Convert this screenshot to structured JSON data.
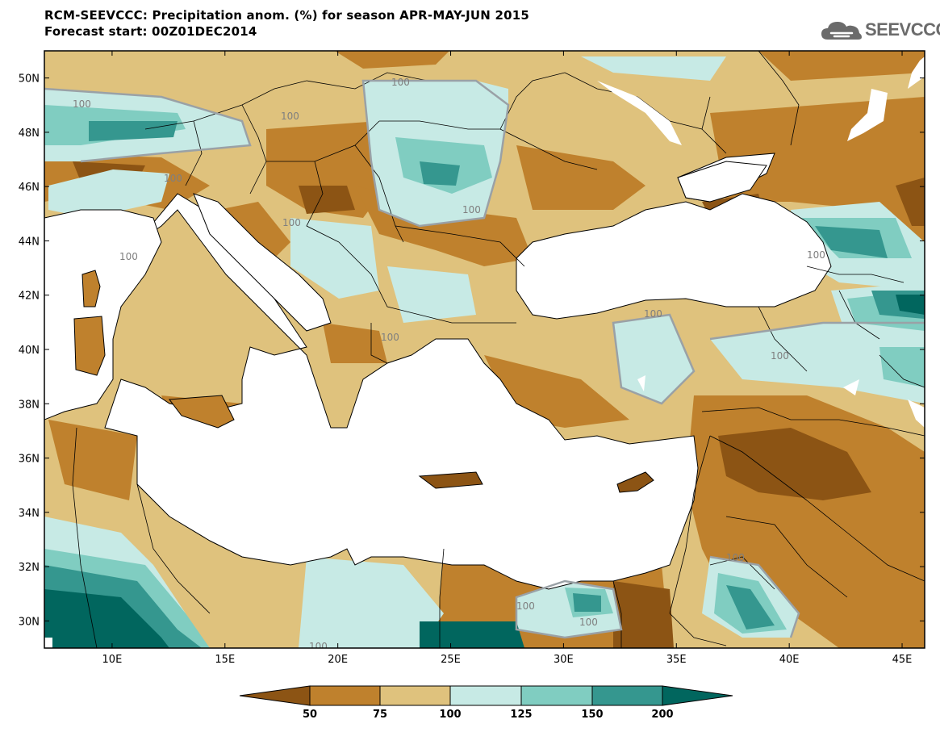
{
  "header": {
    "title_line1": "RCM-SEEVCCC: Precipitation anom. (%) for season APR-MAY-JUN 2015",
    "title_line2": "Forecast start: 00Z01DEC2014",
    "logo_text": "SEEVCCC",
    "logo_icon": "cloud-logo-icon"
  },
  "map": {
    "lon_ticks": [
      "10E",
      "15E",
      "20E",
      "25E",
      "30E",
      "35E",
      "40E",
      "45E"
    ],
    "lat_ticks": [
      "50N",
      "48N",
      "46N",
      "44N",
      "42N",
      "40N",
      "38N",
      "36N",
      "34N",
      "32N",
      "30N"
    ],
    "lon_range": [
      7,
      46
    ],
    "lat_range": [
      29,
      51
    ],
    "contour_labels": [
      "100",
      "100",
      "100",
      "100",
      "100",
      "100",
      "100",
      "100",
      "100",
      "100",
      "100",
      "100",
      "100",
      "100",
      "100"
    ]
  },
  "colorbar": {
    "labels": [
      "50",
      "75",
      "100",
      "125",
      "150",
      "200"
    ],
    "colors": {
      "lt50": "#8c5414",
      "50_75": "#bf812d",
      "75_100": "#dfc27d",
      "100_125": "#c7eae5",
      "125_150": "#80cdc1",
      "150_200": "#35978f",
      "gt200": "#01665e"
    }
  }
}
